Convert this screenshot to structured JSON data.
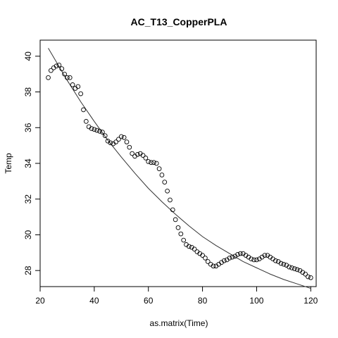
{
  "chart_data": {
    "type": "scatter",
    "title": "AC_T13_CopperPLA",
    "xlabel": "as.matrix(Time)",
    "ylabel": "Temp",
    "xlim": [
      20,
      122
    ],
    "ylim": [
      27.1,
      40.9
    ],
    "x_ticks": [
      20,
      40,
      60,
      80,
      100,
      120
    ],
    "y_ticks": [
      28,
      30,
      32,
      34,
      36,
      38,
      40
    ],
    "grid": false,
    "legend": "none",
    "colors": {
      "points": "#000000",
      "fit_line": "#333333",
      "axes": "#000000"
    },
    "points": [
      [
        23,
        38.8
      ],
      [
        24,
        39.2
      ],
      [
        25,
        39.35
      ],
      [
        26,
        39.45
      ],
      [
        27,
        39.5
      ],
      [
        28,
        39.3
      ],
      [
        29,
        39.0
      ],
      [
        30,
        38.8
      ],
      [
        31,
        38.8
      ],
      [
        32,
        38.4
      ],
      [
        33,
        38.2
      ],
      [
        34,
        38.3
      ],
      [
        35,
        37.9
      ],
      [
        36,
        37.0
      ],
      [
        37,
        36.35
      ],
      [
        38,
        36.05
      ],
      [
        39,
        35.95
      ],
      [
        40,
        35.9
      ],
      [
        41,
        35.85
      ],
      [
        42,
        35.8
      ],
      [
        43,
        35.75
      ],
      [
        44,
        35.55
      ],
      [
        45,
        35.25
      ],
      [
        46,
        35.15
      ],
      [
        47,
        35.1
      ],
      [
        48,
        35.2
      ],
      [
        49,
        35.35
      ],
      [
        50,
        35.5
      ],
      [
        51,
        35.45
      ],
      [
        52,
        35.2
      ],
      [
        53,
        34.9
      ],
      [
        54,
        34.55
      ],
      [
        55,
        34.4
      ],
      [
        56,
        34.5
      ],
      [
        57,
        34.55
      ],
      [
        58,
        34.45
      ],
      [
        59,
        34.3
      ],
      [
        60,
        34.1
      ],
      [
        61,
        34.05
      ],
      [
        62,
        34.05
      ],
      [
        63,
        34.0
      ],
      [
        64,
        33.7
      ],
      [
        65,
        33.35
      ],
      [
        66,
        32.95
      ],
      [
        67,
        32.45
      ],
      [
        68,
        31.95
      ],
      [
        69,
        31.4
      ],
      [
        70,
        30.85
      ],
      [
        71,
        30.4
      ],
      [
        72,
        30.05
      ],
      [
        73,
        29.7
      ],
      [
        74,
        29.45
      ],
      [
        75,
        29.35
      ],
      [
        76,
        29.3
      ],
      [
        77,
        29.2
      ],
      [
        78,
        29.05
      ],
      [
        79,
        28.95
      ],
      [
        80,
        28.85
      ],
      [
        81,
        28.7
      ],
      [
        82,
        28.5
      ],
      [
        83,
        28.35
      ],
      [
        84,
        28.25
      ],
      [
        85,
        28.25
      ],
      [
        86,
        28.35
      ],
      [
        87,
        28.45
      ],
      [
        88,
        28.55
      ],
      [
        89,
        28.6
      ],
      [
        90,
        28.7
      ],
      [
        91,
        28.75
      ],
      [
        92,
        28.8
      ],
      [
        93,
        28.9
      ],
      [
        94,
        28.95
      ],
      [
        95,
        28.95
      ],
      [
        96,
        28.85
      ],
      [
        97,
        28.75
      ],
      [
        98,
        28.65
      ],
      [
        99,
        28.6
      ],
      [
        100,
        28.6
      ],
      [
        101,
        28.65
      ],
      [
        102,
        28.75
      ],
      [
        103,
        28.85
      ],
      [
        104,
        28.85
      ],
      [
        105,
        28.75
      ],
      [
        106,
        28.65
      ],
      [
        107,
        28.55
      ],
      [
        108,
        28.5
      ],
      [
        109,
        28.4
      ],
      [
        110,
        28.35
      ],
      [
        111,
        28.3
      ],
      [
        112,
        28.2
      ],
      [
        113,
        28.15
      ],
      [
        114,
        28.1
      ],
      [
        115,
        28.05
      ],
      [
        116,
        28.0
      ],
      [
        117,
        27.9
      ],
      [
        118,
        27.8
      ],
      [
        119,
        27.65
      ],
      [
        120,
        27.6
      ]
    ],
    "fit_line": {
      "x": [
        23,
        30,
        35,
        40,
        45,
        50,
        55,
        60,
        65,
        70,
        75,
        80,
        85,
        90,
        95,
        100,
        105,
        110,
        115,
        120
      ],
      "y": [
        40.45,
        38.65,
        37.45,
        36.35,
        35.3,
        34.35,
        33.45,
        32.6,
        31.85,
        31.15,
        30.5,
        29.9,
        29.4,
        28.95,
        28.5,
        28.15,
        27.8,
        27.5,
        27.25,
        27.0
      ]
    }
  }
}
